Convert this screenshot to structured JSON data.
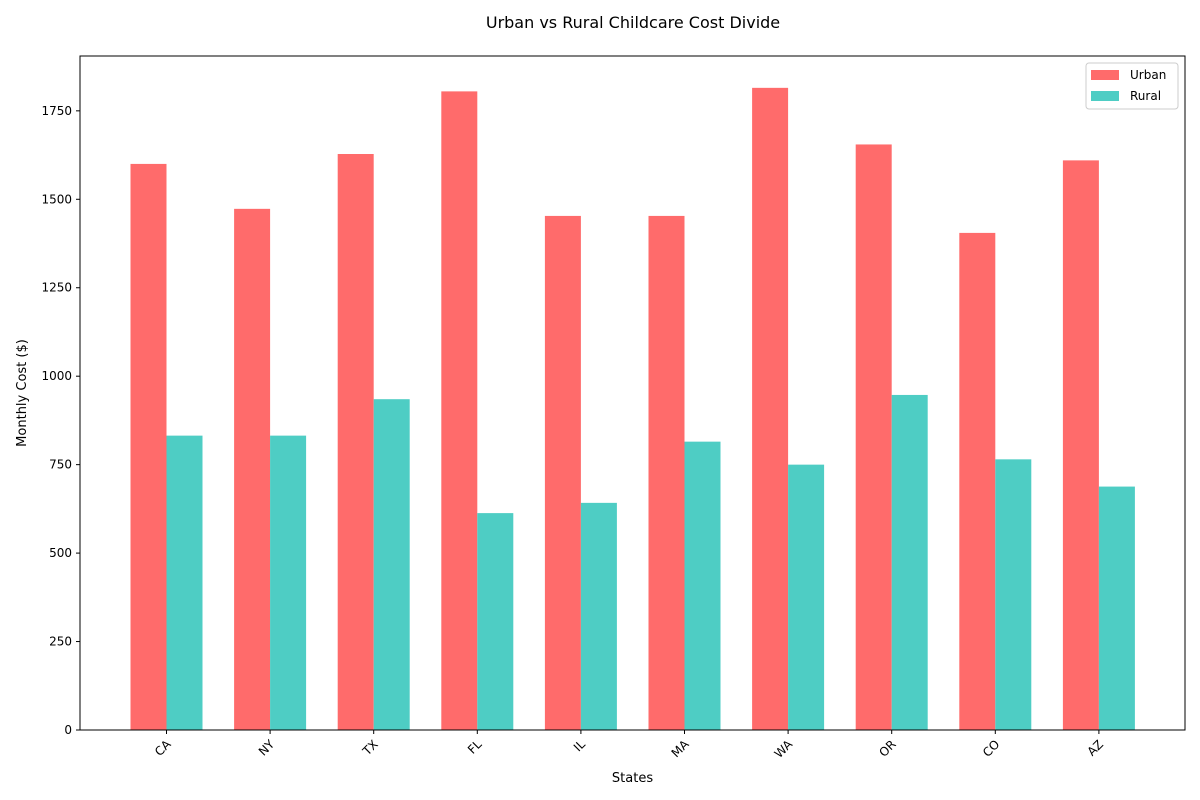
{
  "chart_data": {
    "type": "bar",
    "title": "Urban vs Rural Childcare Cost Divide",
    "xlabel": "States",
    "ylabel": "Monthly Cost ($)",
    "categories": [
      "CA",
      "NY",
      "TX",
      "FL",
      "IL",
      "MA",
      "WA",
      "OR",
      "CO",
      "AZ"
    ],
    "series": [
      {
        "name": "Urban",
        "color": "#ff6b6b",
        "values": [
          1600,
          1473,
          1628,
          1805,
          1453,
          1453,
          1815,
          1655,
          1405,
          1610
        ]
      },
      {
        "name": "Rural",
        "color": "#4ecdc4",
        "values": [
          832,
          832,
          935,
          613,
          642,
          815,
          750,
          947,
          765,
          688
        ]
      }
    ],
    "ylim": [
      0,
      1905
    ],
    "yticks": [
      0,
      250,
      500,
      750,
      1000,
      1250,
      1500,
      1750
    ],
    "grid": false,
    "legend_position": "top-right",
    "x_tick_rotation": 45
  }
}
